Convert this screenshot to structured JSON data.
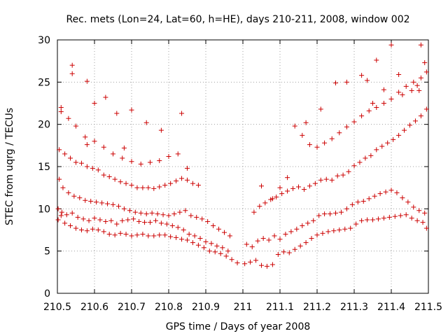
{
  "chart_data": {
    "type": "scatter",
    "title": "Rec. mets (Lon=24, Lat=60, h=HE), days 210-211, 2008, window 002",
    "xlabel": "GPS time / Days of year 2008",
    "ylabel": "STEC from uqrg / TECUs",
    "xlim": [
      210.5,
      211.5
    ],
    "ylim": [
      0,
      30
    ],
    "xticks": [
      210.5,
      210.6,
      210.7,
      210.8,
      210.9,
      211,
      211.1,
      211.2,
      211.3,
      211.4,
      211.5
    ],
    "xtick_labels": [
      "210.5",
      "210.6",
      "210.7",
      "210.8",
      "210.9",
      "211",
      "211.1",
      "211.2",
      "211.3",
      "211.4",
      "211.5"
    ],
    "yticks": [
      0,
      5,
      10,
      15,
      20,
      25,
      30
    ],
    "ytick_labels": [
      "0",
      "5",
      "10",
      "15",
      "20",
      "25",
      "30"
    ],
    "grid": true,
    "marker": "+",
    "color": "#cc0000",
    "series": [
      {
        "x": [
          210.502,
          210.51,
          210.52,
          210.535,
          210.55,
          210.565,
          210.58,
          210.595,
          210.61,
          210.625,
          210.64,
          210.655,
          210.67,
          210.685,
          210.7,
          210.715,
          210.73,
          210.745,
          210.76,
          210.775,
          210.79,
          210.805,
          210.82,
          210.835,
          210.85,
          210.865,
          210.88,
          210.895,
          210.91,
          210.925,
          210.94,
          210.955,
          210.97,
          210.985,
          210.502,
          210.512,
          210.525,
          210.54,
          210.555,
          210.57,
          210.585,
          210.6,
          210.615,
          210.63,
          210.645,
          210.66,
          210.675,
          210.69,
          210.705,
          210.72,
          210.735,
          210.75,
          210.765,
          210.78,
          210.795,
          210.81,
          210.825,
          210.84,
          210.855,
          210.87,
          210.885,
          210.9,
          210.915,
          210.93,
          210.945,
          210.96,
          210.505,
          210.515,
          210.53,
          210.545,
          210.56,
          210.575,
          210.59,
          210.605,
          210.62,
          210.635,
          210.65,
          210.665,
          210.68,
          210.695,
          210.71,
          210.725,
          210.74,
          210.755,
          210.77,
          210.785,
          210.8,
          210.815,
          210.83,
          210.845,
          210.86,
          210.875,
          210.89,
          210.905,
          210.92,
          210.935,
          210.95,
          210.965,
          210.505,
          210.52,
          210.535,
          210.55,
          210.565,
          210.58,
          210.595,
          210.61,
          210.625,
          210.64,
          210.655,
          210.67,
          210.685,
          210.7,
          210.715,
          210.73,
          210.745,
          210.76,
          210.775,
          210.79,
          210.805,
          210.82,
          210.835,
          210.85,
          210.865,
          210.88,
          210.51,
          210.53,
          210.55,
          210.575,
          210.6,
          210.625,
          210.65,
          210.675,
          210.7,
          210.725,
          210.75,
          210.775,
          210.8,
          210.825,
          210.85,
          210.51,
          210.54,
          210.58,
          210.6,
          210.63,
          210.66,
          210.7,
          210.74,
          210.78,
          210.835,
          210.54,
          210.58,
          210.68,
          211.005,
          211.02,
          211.035,
          211.05,
          211.065,
          211.08,
          211.095,
          211.11,
          211.125,
          211.14,
          211.155,
          211.17,
          211.185,
          211.2,
          211.215,
          211.23,
          211.245,
          211.26,
          211.275,
          211.29,
          211.305,
          211.32,
          211.335,
          211.35,
          211.365,
          211.38,
          211.395,
          211.41,
          211.425,
          211.44,
          211.455,
          211.47,
          211.485,
          211.495,
          211.01,
          211.025,
          211.04,
          211.055,
          211.07,
          211.085,
          211.1,
          211.115,
          211.13,
          211.145,
          211.16,
          211.175,
          211.19,
          211.205,
          211.22,
          211.235,
          211.25,
          211.265,
          211.28,
          211.295,
          211.31,
          211.325,
          211.34,
          211.355,
          211.37,
          211.385,
          211.4,
          211.415,
          211.43,
          211.445,
          211.46,
          211.475,
          211.49,
          211.03,
          211.045,
          211.06,
          211.075,
          211.09,
          211.105,
          211.12,
          211.135,
          211.15,
          211.165,
          211.18,
          211.195,
          211.21,
          211.225,
          211.24,
          211.255,
          211.27,
          211.285,
          211.3,
          211.315,
          211.33,
          211.345,
          211.36,
          211.375,
          211.39,
          211.405,
          211.42,
          211.435,
          211.45,
          211.465,
          211.48,
          211.495,
          211.14,
          211.16,
          211.18,
          211.2,
          211.22,
          211.24,
          211.26,
          211.28,
          211.3,
          211.32,
          211.34,
          211.36,
          211.38,
          211.4,
          211.42,
          211.44,
          211.46,
          211.48,
          211.495,
          211.21,
          211.25,
          211.28,
          211.32,
          211.335,
          211.36,
          211.38,
          211.4,
          211.42,
          211.455,
          211.47,
          211.48,
          211.49,
          211.35,
          211.43,
          211.475,
          211.05,
          211.08,
          211.1,
          211.12,
          211.17
        ],
        "y": [
          8.7,
          9.2,
          8.3,
          8.0,
          7.7,
          7.5,
          7.4,
          7.6,
          7.5,
          7.3,
          7.0,
          6.9,
          7.1,
          7.0,
          6.8,
          6.9,
          7.0,
          6.8,
          6.8,
          6.9,
          6.9,
          6.7,
          6.6,
          6.4,
          6.3,
          6.0,
          5.7,
          5.4,
          5.0,
          4.9,
          4.7,
          4.4,
          4.0,
          3.6,
          10.0,
          9.6,
          9.3,
          9.5,
          9.0,
          8.8,
          8.6,
          8.9,
          8.7,
          8.5,
          8.6,
          8.2,
          8.6,
          8.7,
          8.8,
          8.5,
          8.4,
          8.4,
          8.6,
          8.3,
          8.2,
          8.0,
          7.8,
          7.5,
          7.0,
          6.8,
          6.5,
          6.1,
          5.9,
          5.6,
          5.4,
          5.0,
          13.5,
          12.5,
          11.9,
          11.5,
          11.3,
          11.0,
          10.9,
          10.8,
          10.7,
          10.6,
          10.5,
          10.3,
          10.0,
          9.8,
          9.6,
          9.5,
          9.4,
          9.5,
          9.4,
          9.3,
          9.2,
          9.4,
          9.6,
          9.8,
          9.2,
          9.0,
          8.8,
          8.5,
          8.0,
          7.6,
          7.2,
          6.8,
          17.0,
          16.5,
          16.0,
          15.5,
          15.4,
          15.0,
          14.8,
          14.6,
          14.0,
          13.8,
          13.5,
          13.2,
          13.0,
          12.8,
          12.5,
          12.5,
          12.5,
          12.4,
          12.6,
          12.8,
          13.0,
          13.3,
          13.6,
          13.4,
          13.0,
          12.8,
          21.5,
          20.7,
          19.8,
          18.5,
          18.0,
          17.3,
          16.5,
          16.0,
          15.6,
          15.3,
          15.5,
          15.7,
          16.2,
          16.5,
          14.8,
          22.0,
          27.0,
          25.1,
          22.5,
          23.2,
          21.3,
          21.7,
          20.2,
          19.3,
          21.3,
          26.0,
          17.6,
          17.2,
          3.5,
          3.7,
          3.9,
          3.3,
          3.2,
          3.4,
          4.6,
          4.9,
          4.8,
          5.2,
          5.6,
          6.0,
          6.5,
          6.9,
          7.1,
          7.3,
          7.4,
          7.5,
          7.6,
          7.7,
          8.2,
          8.6,
          8.7,
          8.7,
          8.8,
          8.9,
          9.0,
          9.1,
          9.2,
          9.3,
          8.9,
          8.6,
          8.4,
          7.7,
          5.8,
          5.5,
          6.2,
          6.5,
          6.3,
          6.8,
          6.4,
          7.0,
          7.3,
          7.6,
          8.0,
          8.3,
          8.6,
          9.2,
          9.4,
          9.4,
          9.5,
          9.6,
          10.0,
          10.5,
          10.8,
          10.9,
          11.2,
          11.5,
          11.8,
          12.0,
          12.2,
          11.9,
          11.3,
          10.8,
          10.2,
          9.8,
          9.5,
          9.6,
          10.3,
          10.7,
          11.1,
          11.4,
          11.8,
          12.1,
          12.4,
          12.6,
          12.3,
          12.7,
          13.0,
          13.4,
          13.5,
          13.4,
          13.9,
          14.0,
          14.4,
          15.1,
          15.5,
          16.0,
          16.3,
          17.0,
          17.4,
          17.8,
          18.2,
          18.7,
          19.3,
          19.9,
          20.4,
          21.0,
          21.8,
          19.8,
          18.7,
          17.6,
          17.3,
          17.8,
          18.3,
          19.0,
          19.7,
          20.3,
          21.0,
          21.6,
          22.0,
          22.5,
          23.0,
          23.8,
          24.5,
          25.0,
          25.5,
          26.2,
          21.8,
          24.9,
          25.0,
          25.8,
          25.2,
          27.6,
          24.1,
          29.4,
          25.9,
          24.0,
          24.6,
          29.4,
          27.3,
          22.5,
          23.5,
          24.0,
          12.7,
          11.2,
          12.5,
          13.7,
          20.2
        ]
      }
    ]
  }
}
